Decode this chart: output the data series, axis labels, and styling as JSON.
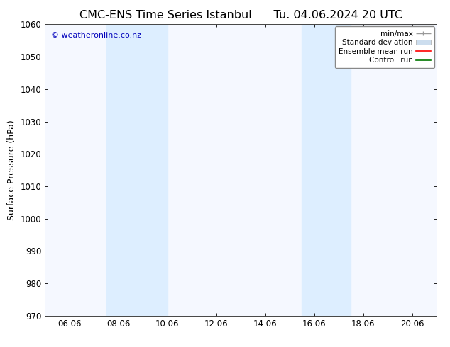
{
  "title_left": "CMC-ENS Time Series Istanbul",
  "title_right": "Tu. 04.06.2024 20 UTC",
  "ylabel": "Surface Pressure (hPa)",
  "xlim": [
    5.0,
    21.0
  ],
  "ylim": [
    970,
    1060
  ],
  "yticks": [
    970,
    980,
    990,
    1000,
    1010,
    1020,
    1030,
    1040,
    1050,
    1060
  ],
  "xtick_labels": [
    "06.06",
    "08.06",
    "10.06",
    "12.06",
    "14.06",
    "16.06",
    "18.06",
    "20.06"
  ],
  "xtick_positions": [
    6,
    8,
    10,
    12,
    14,
    16,
    18,
    20
  ],
  "shade_regions": [
    {
      "xmin": 7.5,
      "xmax": 10.0
    },
    {
      "xmin": 15.5,
      "xmax": 17.5
    }
  ],
  "shade_color": "#ddeeff",
  "background_color": "#ffffff",
  "plot_bg_color": "#f5f8ff",
  "watermark_text": "© weatheronline.co.nz",
  "watermark_color": "#0000bb",
  "legend_labels": [
    "min/max",
    "Standard deviation",
    "Ensemble mean run",
    "Controll run"
  ],
  "minmax_color": "#999999",
  "stddev_color": "#ccddee",
  "ensemble_color": "#ff0000",
  "control_color": "#007700",
  "title_fontsize": 11.5,
  "ylabel_fontsize": 9,
  "tick_fontsize": 8.5,
  "watermark_fontsize": 8,
  "legend_fontsize": 7.5
}
